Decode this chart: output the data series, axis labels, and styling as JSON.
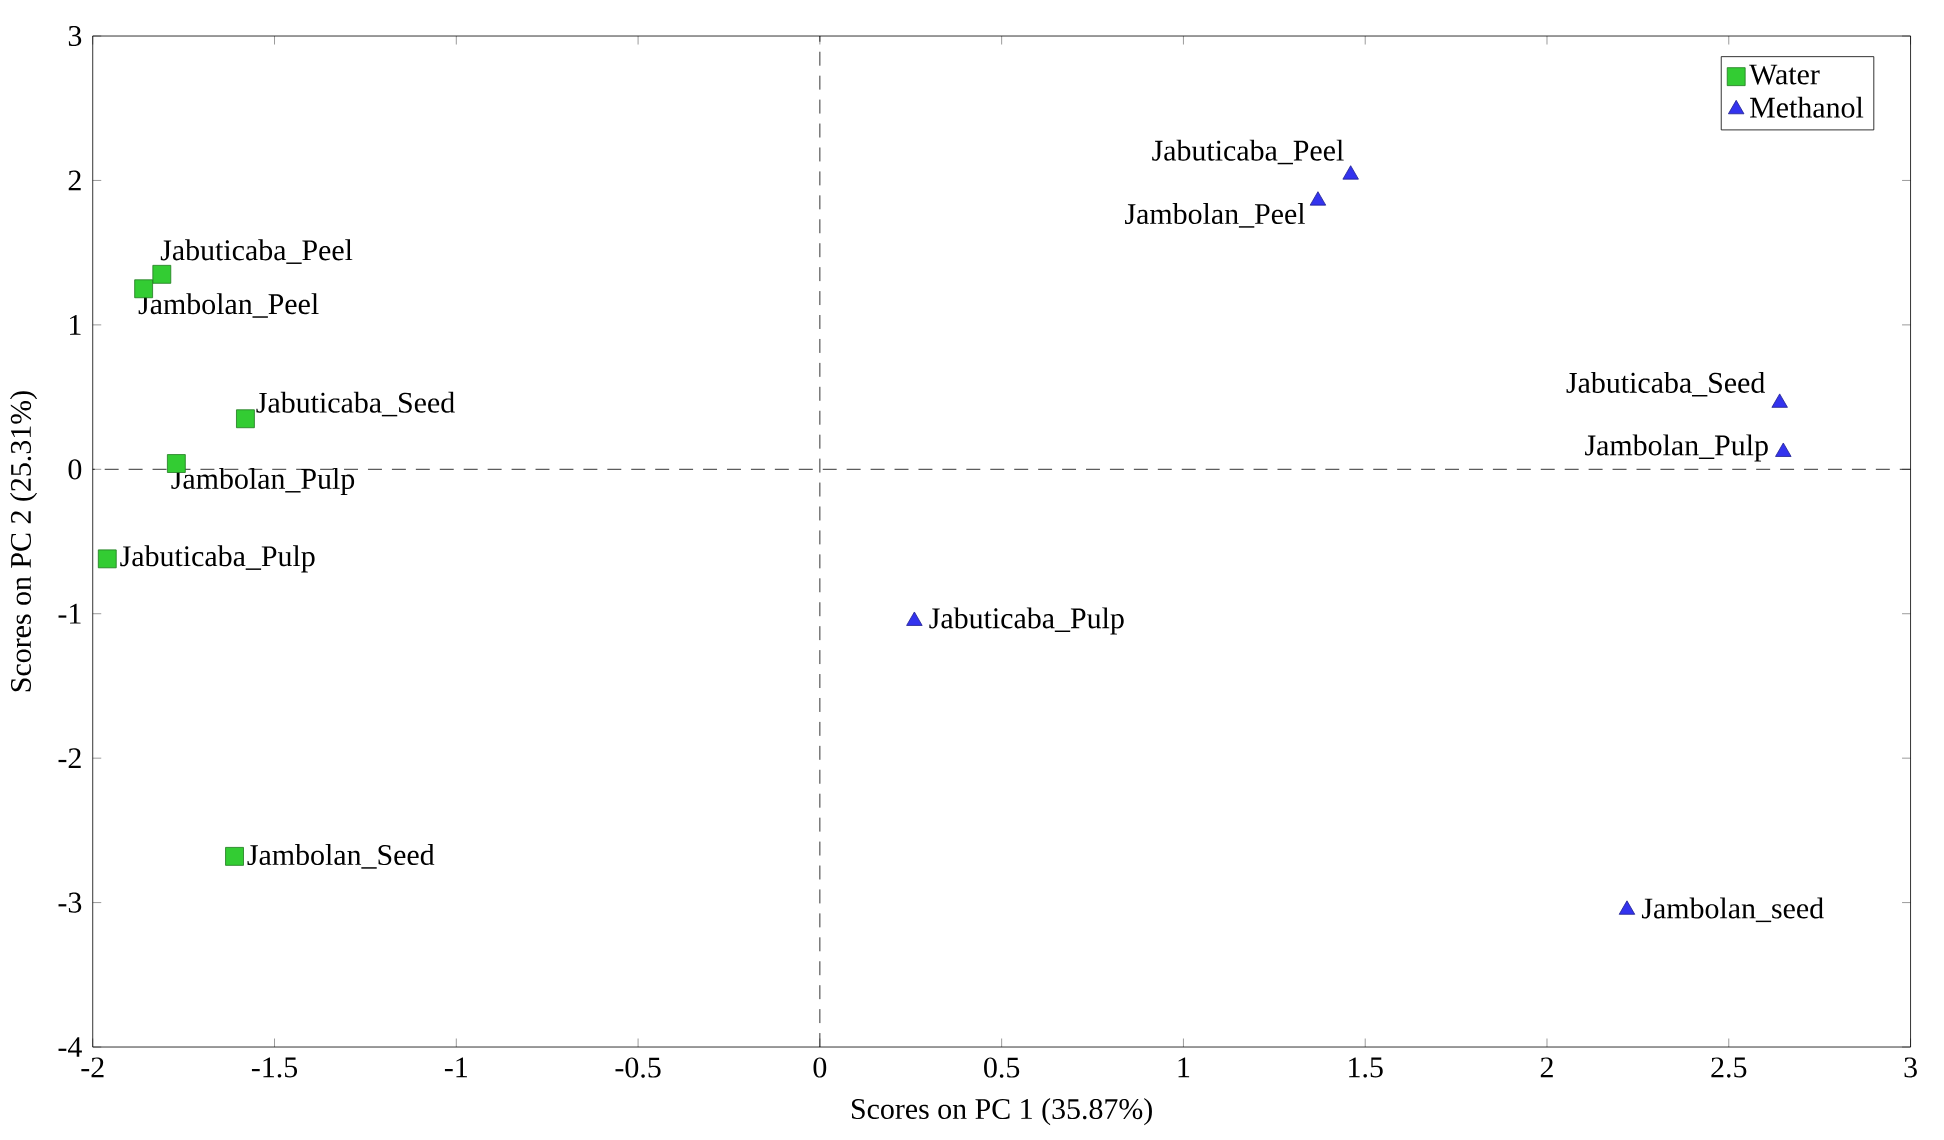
{
  "chart_data": {
    "type": "scatter",
    "xlabel": "Scores on PC 1 (35.87%)",
    "ylabel": "Scores on PC 2 (25.31%)",
    "xlim": [
      -2,
      3
    ],
    "ylim": [
      -4,
      3
    ],
    "xticks": [
      -2,
      -1.5,
      -1,
      -0.5,
      0,
      0.5,
      1,
      1.5,
      2,
      2.5,
      3
    ],
    "yticks": [
      -4,
      -3,
      -2,
      -1,
      0,
      1,
      2,
      3
    ],
    "legend": "top right",
    "grid": false,
    "series": [
      {
        "name": "Water",
        "color": "#33cc33",
        "marker": "square",
        "x": [
          -1.81,
          -1.86,
          -1.58,
          -1.77,
          -1.96,
          -1.61
        ],
        "values": [
          1.35,
          1.25,
          0.35,
          0.04,
          -0.62,
          -2.68
        ]
      },
      {
        "name": "Methanol",
        "color": "#3333ee",
        "marker": "triangle",
        "x": [
          1.46,
          1.37,
          2.64,
          2.65,
          0.26,
          2.22
        ],
        "values": [
          2.04,
          1.86,
          0.46,
          0.12,
          -1.05,
          -3.05
        ]
      }
    ],
    "ref_lines": [
      {
        "axis": "x",
        "value": 0,
        "line_style": "dashed",
        "color": "#000000"
      },
      {
        "axis": "y",
        "value": 0,
        "line_style": "dashed",
        "color": "#000000"
      }
    ],
    "annotations": [
      {
        "text": "Jabuticaba_Peel",
        "x": -1.81,
        "y": 1.35
      },
      {
        "text": "Jambolan_Peel",
        "x": -1.86,
        "y": 1.25
      },
      {
        "text": "Jabuticaba_Seed",
        "x": -1.58,
        "y": 0.35
      },
      {
        "text": "Jambolan_Pulp",
        "x": -1.77,
        "y": 0.04
      },
      {
        "text": "Jabuticaba_Pulp",
        "x": -1.96,
        "y": -0.62
      },
      {
        "text": "Jambolan_Seed",
        "x": -1.61,
        "y": -2.68
      },
      {
        "text": "Jabuticaba_Peel",
        "x": 1.46,
        "y": 2.04
      },
      {
        "text": "Jambolan_Peel",
        "x": 1.37,
        "y": 1.86
      },
      {
        "text": "Jabuticaba_Seed",
        "x": 2.64,
        "y": 0.46
      },
      {
        "text": "Jambolan_Pulp",
        "x": 2.65,
        "y": 0.12
      },
      {
        "text": "Jabuticaba_Pulp",
        "x": 0.26,
        "y": -1.05
      },
      {
        "text": "Jambolan_seed",
        "x": 2.22,
        "y": -3.05
      }
    ]
  }
}
